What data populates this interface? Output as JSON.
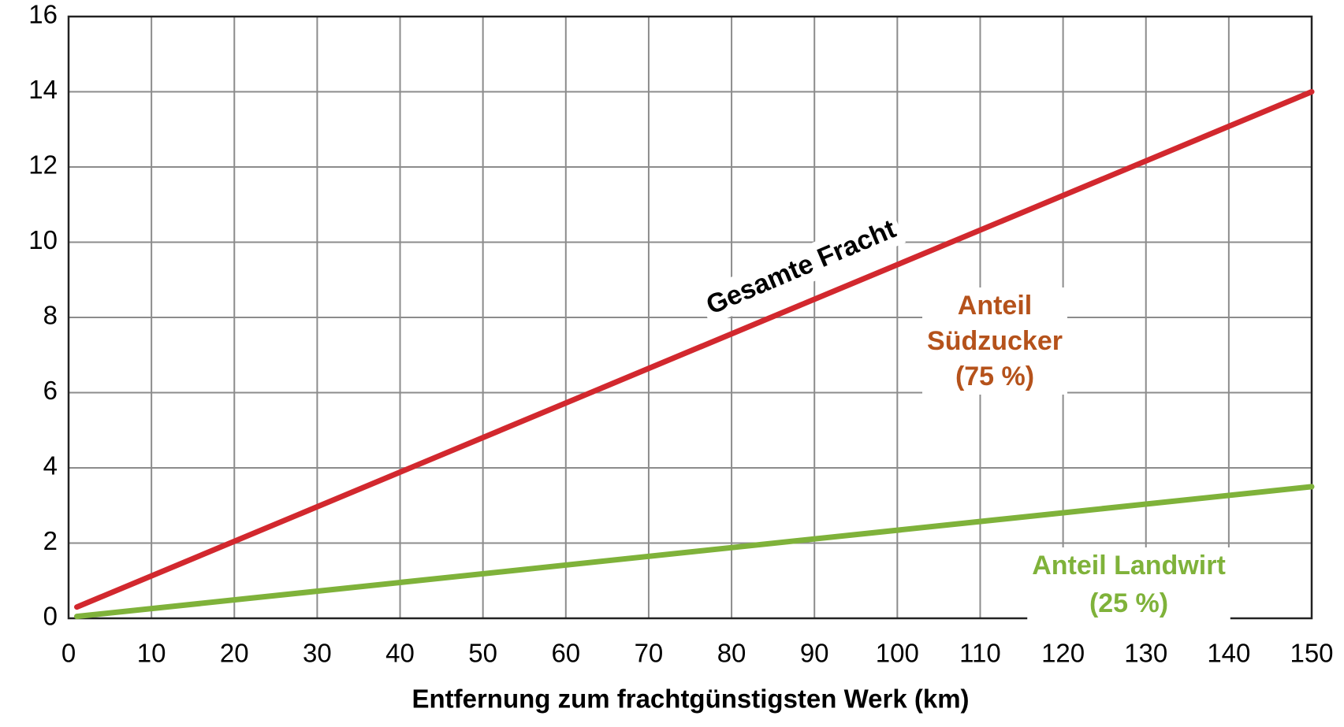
{
  "chart_data": {
    "type": "line",
    "xlabel": "Entfernung zum frachtgünstigsten Werk (km)",
    "x": [
      1,
      150
    ],
    "series": [
      {
        "name": "Gesamte Fracht",
        "color": "#d2282e",
        "values": [
          0.3,
          14
        ]
      },
      {
        "name": "Anteil Landwirt (25 %)",
        "color": "#7fb23a",
        "values": [
          0.05,
          3.5
        ]
      }
    ],
    "annotations": [
      {
        "lines": [
          "Gesamte Fracht"
        ],
        "color": "#000000"
      },
      {
        "lines": [
          "Anteil",
          "Südzucker",
          "(75 %)"
        ],
        "color": "#b5521b"
      },
      {
        "lines": [
          "Anteil Landwirt",
          "(25 %)"
        ],
        "color": "#7fb23a"
      }
    ],
    "xlim": [
      0,
      150
    ],
    "xticks": [
      0,
      10,
      20,
      30,
      40,
      50,
      60,
      70,
      80,
      90,
      100,
      110,
      120,
      130,
      140,
      150
    ],
    "ylim": [
      0,
      16
    ],
    "yticks": [
      0,
      2,
      4,
      6,
      8,
      10,
      12,
      14,
      16
    ],
    "grid": true
  }
}
